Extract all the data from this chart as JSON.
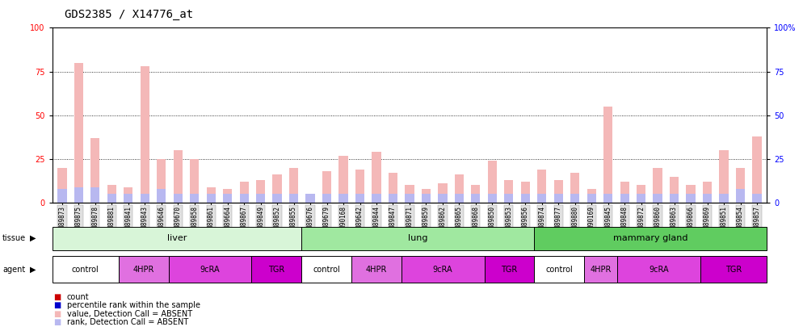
{
  "title": "GDS2385 / X14776_at",
  "samples": [
    "GSM89873",
    "GSM89875",
    "GSM89878",
    "GSM89881",
    "GSM89841",
    "GSM89843",
    "GSM89646",
    "GSM89670",
    "GSM89858",
    "GSM89861",
    "GSM89664",
    "GSM89867",
    "GSM89849",
    "GSM89852",
    "GSM89855",
    "GSM89676",
    "GSM89679",
    "GSM90168",
    "GSM89642",
    "GSM89844",
    "GSM89847",
    "GSM89871",
    "GSM89859",
    "GSM89862",
    "GSM89865",
    "GSM89868",
    "GSM89850",
    "GSM89853",
    "GSM89856",
    "GSM89874",
    "GSM89877",
    "GSM89880",
    "GSM90169",
    "GSM89845",
    "GSM89848",
    "GSM89872",
    "GSM89860",
    "GSM89863",
    "GSM89866",
    "GSM89869",
    "GSM89851",
    "GSM89854",
    "GSM89857"
  ],
  "absent_values": [
    20,
    80,
    37,
    10,
    9,
    78,
    25,
    30,
    25,
    9,
    8,
    12,
    13,
    16,
    20,
    5,
    18,
    27,
    19,
    29,
    17,
    10,
    8,
    11,
    16,
    10,
    24,
    13,
    12,
    19,
    13,
    17,
    8,
    55,
    12,
    10,
    20,
    15,
    10,
    12,
    30,
    20,
    38
  ],
  "absent_ranks": [
    8,
    9,
    9,
    5,
    5,
    5,
    8,
    5,
    5,
    5,
    5,
    5,
    5,
    5,
    5,
    5,
    5,
    5,
    5,
    5,
    5,
    5,
    5,
    5,
    5,
    5,
    5,
    5,
    5,
    5,
    5,
    5,
    5,
    5,
    5,
    5,
    5,
    5,
    5,
    5,
    5,
    8,
    5
  ],
  "tissue_groups": [
    {
      "label": "liver",
      "start": 0,
      "end": 14,
      "color": "#d8f5d8"
    },
    {
      "label": "lung",
      "start": 15,
      "end": 28,
      "color": "#a0e8a0"
    },
    {
      "label": "mammary gland",
      "start": 29,
      "end": 42,
      "color": "#60cc60"
    }
  ],
  "agent_groups": [
    {
      "label": "control",
      "start": 0,
      "end": 3,
      "color": "#ffffff"
    },
    {
      "label": "4HPR",
      "start": 4,
      "end": 6,
      "color": "#e070e0"
    },
    {
      "label": "9cRA",
      "start": 7,
      "end": 11,
      "color": "#dd44dd"
    },
    {
      "label": "TGR",
      "start": 12,
      "end": 14,
      "color": "#cc00cc"
    },
    {
      "label": "control",
      "start": 15,
      "end": 17,
      "color": "#ffffff"
    },
    {
      "label": "4HPR",
      "start": 18,
      "end": 20,
      "color": "#e070e0"
    },
    {
      "label": "9cRA",
      "start": 21,
      "end": 25,
      "color": "#dd44dd"
    },
    {
      "label": "TGR",
      "start": 26,
      "end": 28,
      "color": "#cc00cc"
    },
    {
      "label": "control",
      "start": 29,
      "end": 31,
      "color": "#ffffff"
    },
    {
      "label": "4HPR",
      "start": 32,
      "end": 33,
      "color": "#e070e0"
    },
    {
      "label": "9cRA",
      "start": 34,
      "end": 38,
      "color": "#dd44dd"
    },
    {
      "label": "TGR",
      "start": 39,
      "end": 42,
      "color": "#cc00cc"
    }
  ],
  "ylim": [
    0,
    100
  ],
  "yticks": [
    0,
    25,
    50,
    75,
    100
  ],
  "color_absent_val": "#f4b8b8",
  "color_absent_rank": "#b8b8f0",
  "color_count": "#cc0000",
  "color_prank": "#0000cc",
  "title_fontsize": 10,
  "tick_fontsize": 5.5
}
